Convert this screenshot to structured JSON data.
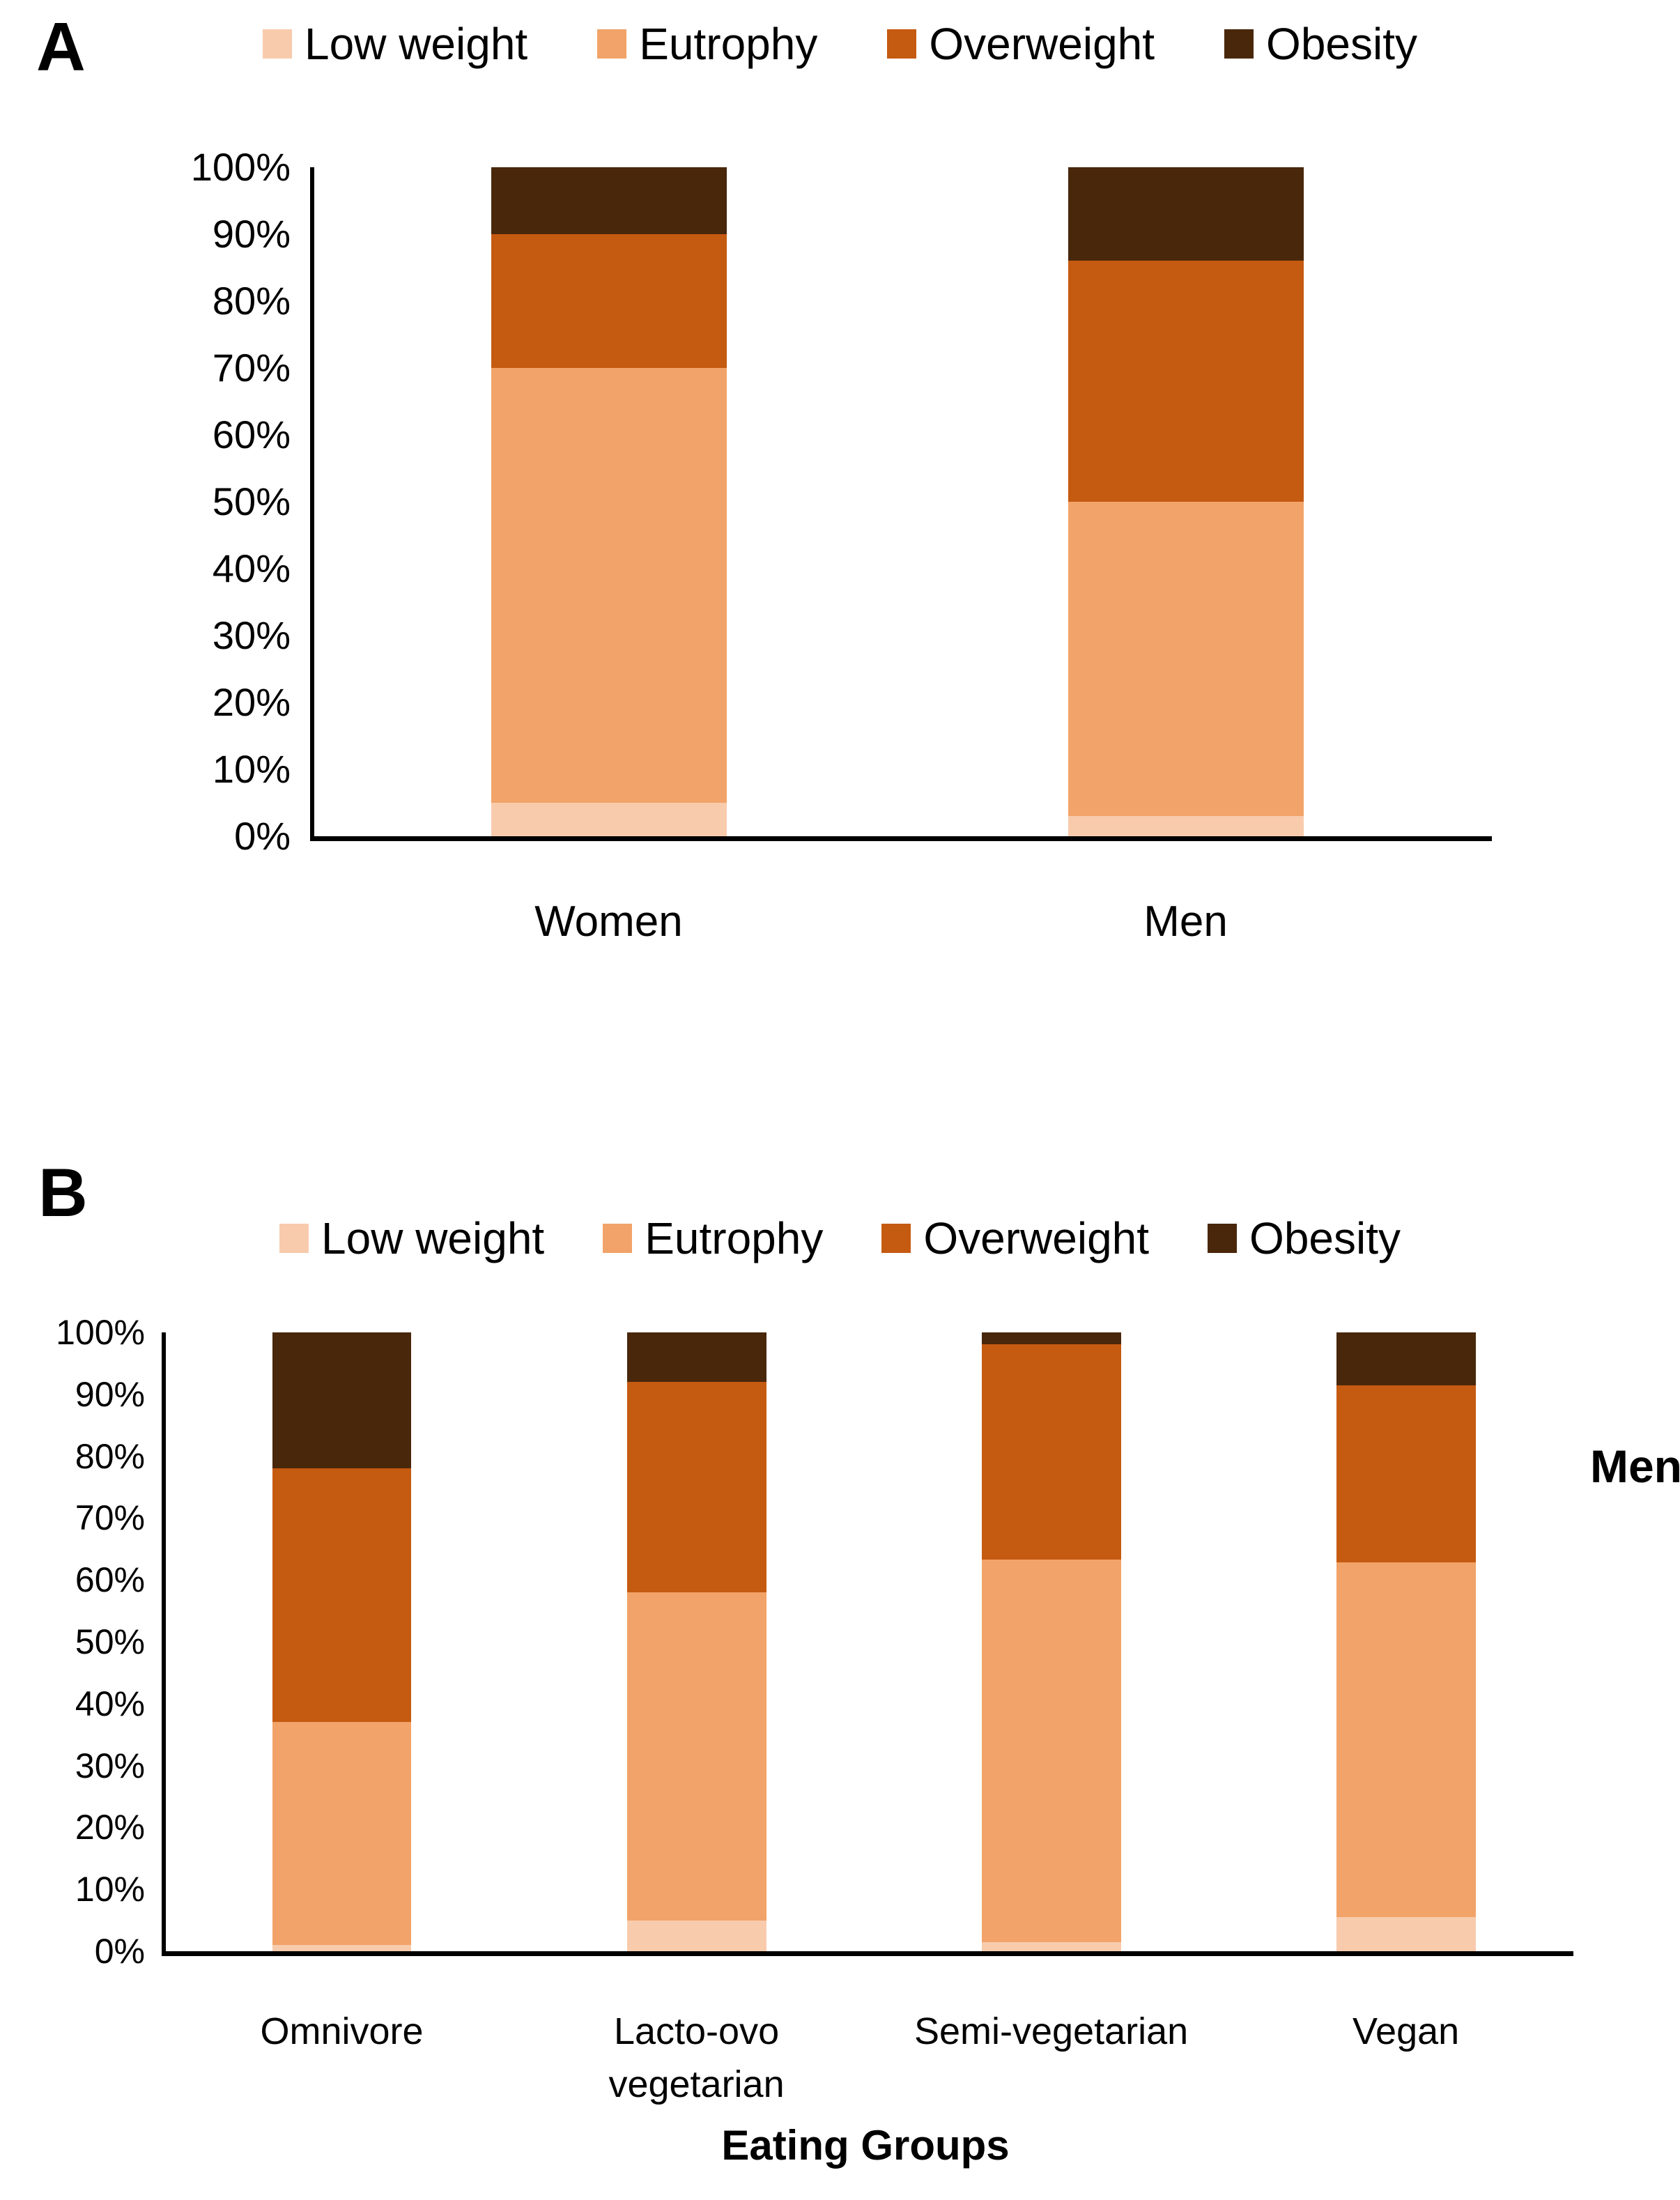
{
  "colors": {
    "low_weight": "#F8CBAD",
    "eutrophy": "#F2A369",
    "overweight": "#C55A11",
    "obesity": "#49270B",
    "axis": "#000000",
    "background": "#FFFFFF"
  },
  "legend_labels": [
    "Low weight",
    "Eutrophy",
    "Overweight",
    "Obesity"
  ],
  "chart_data": [
    {
      "id": "A",
      "panel_label": "A",
      "type": "bar",
      "stacked": true,
      "percent_stacked": true,
      "legend_position": "top",
      "grid": false,
      "ylim": [
        0,
        100
      ],
      "yticks": [
        "0%",
        "10%",
        "20%",
        "30%",
        "40%",
        "50%",
        "60%",
        "70%",
        "80%",
        "90%",
        "100%"
      ],
      "categories": [
        "Women",
        "Men"
      ],
      "series": [
        {
          "name": "Low weight",
          "values": [
            5,
            3
          ]
        },
        {
          "name": "Eutrophy",
          "values": [
            65,
            47
          ]
        },
        {
          "name": "Overweight",
          "values": [
            20,
            36
          ]
        },
        {
          "name": "Obesity",
          "values": [
            10,
            14
          ]
        }
      ],
      "xlabel": "",
      "right_label": ""
    },
    {
      "id": "B",
      "panel_label": "B",
      "type": "bar",
      "stacked": true,
      "percent_stacked": true,
      "legend_position": "top",
      "grid": false,
      "ylim": [
        0,
        100
      ],
      "yticks": [
        "0%",
        "10%",
        "20%",
        "30%",
        "40%",
        "50%",
        "60%",
        "70%",
        "80%",
        "90%",
        "100%"
      ],
      "categories": [
        "Omnivore",
        "Lacto-ovo vegetarian",
        "Semi-vegetarian",
        "Vegan"
      ],
      "series": [
        {
          "name": "Low weight",
          "values": [
            1,
            5,
            1.5,
            5.5
          ]
        },
        {
          "name": "Eutrophy",
          "values": [
            36,
            53,
            61.8,
            57.3
          ]
        },
        {
          "name": "Overweight",
          "values": [
            41,
            34,
            34.8,
            28.7
          ]
        },
        {
          "name": "Obesity",
          "values": [
            22,
            8,
            1.9,
            8.5
          ]
        }
      ],
      "xlabel": "Eating Groups",
      "right_label": "Men"
    }
  ]
}
